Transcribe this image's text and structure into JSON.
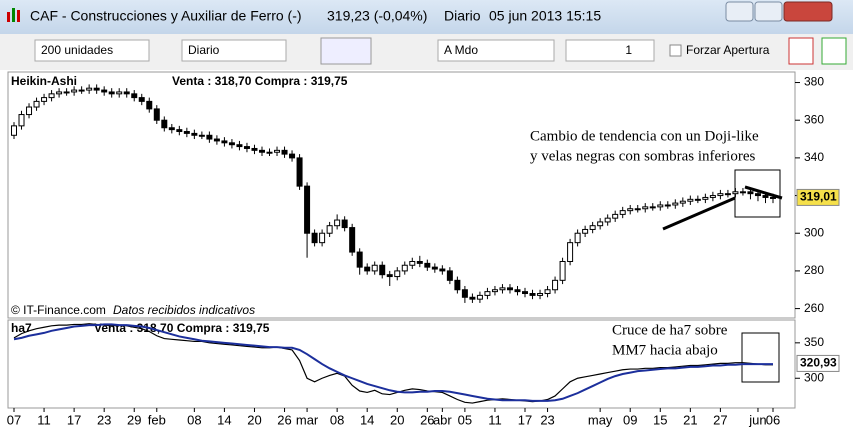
{
  "window": {
    "title": "CAF - Construcciones y Auxiliar de Ferro (-)",
    "quote": "319,23 (-0,04%)",
    "period": "Diario",
    "datetime": "05 jun 2013 15:15"
  },
  "toolbar": {
    "size": "200 unidades",
    "period": "Diario",
    "order": "A Mdo",
    "quantity": "1",
    "force_open": "Forzar Apertura"
  },
  "chart_data": [
    {
      "type": "candlestick",
      "title": "Heikin-Ashi",
      "subtitle": "Venta : 318,70 Compra : 319,75",
      "source": "© IT-Finance.com",
      "note": "Datos recibidos indicativos",
      "categories": [
        "07",
        null,
        null,
        null,
        "11",
        null,
        null,
        null,
        "17",
        null,
        null,
        null,
        "23",
        null,
        null,
        null,
        "29",
        null,
        null,
        "feb",
        null,
        null,
        null,
        null,
        "08",
        null,
        null,
        null,
        "14",
        null,
        null,
        null,
        "20",
        null,
        null,
        null,
        "26",
        null,
        null,
        "mar",
        null,
        null,
        null,
        "08",
        null,
        null,
        null,
        "14",
        null,
        null,
        null,
        "20",
        null,
        null,
        null,
        "26",
        null,
        "abr",
        null,
        null,
        "05",
        null,
        null,
        null,
        "11",
        null,
        null,
        null,
        "17",
        null,
        null,
        "23",
        null,
        null,
        null,
        null,
        null,
        null,
        "may",
        null,
        null,
        null,
        "09",
        null,
        null,
        null,
        "15",
        null,
        null,
        null,
        "21",
        null,
        null,
        null,
        "27",
        null,
        null,
        null,
        null,
        "jun",
        null,
        "06"
      ],
      "open": [
        352,
        357,
        363,
        367,
        370,
        372,
        374,
        375,
        375,
        376,
        376,
        377,
        376,
        375,
        374,
        375,
        374,
        372,
        370,
        366,
        360,
        356,
        355,
        354,
        353,
        352,
        352,
        350,
        349,
        348,
        347,
        346,
        345,
        344,
        343,
        343,
        344,
        342,
        340,
        325,
        300,
        295,
        300,
        304,
        307,
        303,
        290,
        282,
        280,
        283,
        278,
        277,
        280,
        283,
        285,
        284,
        282,
        281,
        280,
        275,
        270,
        266,
        265,
        267,
        269,
        270,
        271,
        270,
        269,
        268,
        267,
        268,
        270,
        275,
        285,
        295,
        300,
        302,
        304,
        306,
        308,
        310,
        312,
        313,
        313,
        314,
        314,
        315,
        315,
        316,
        317,
        318,
        318,
        319,
        320,
        321,
        321,
        322,
        322,
        321,
        320,
        319
      ],
      "high": [
        359,
        365,
        369,
        372,
        374,
        376,
        377,
        377,
        378,
        378,
        379,
        379,
        378,
        377,
        377,
        377,
        376,
        374,
        372,
        368,
        362,
        358,
        357,
        356,
        355,
        354,
        354,
        352,
        351,
        350,
        349,
        348,
        347,
        346,
        345,
        346,
        346,
        344,
        342,
        327,
        302,
        302,
        306,
        310,
        309,
        305,
        292,
        284,
        285,
        285,
        280,
        282,
        285,
        287,
        288,
        286,
        284,
        283,
        282,
        277,
        272,
        268,
        269,
        271,
        272,
        273,
        273,
        272,
        271,
        270,
        270,
        272,
        277,
        287,
        297,
        302,
        304,
        306,
        308,
        310,
        312,
        314,
        315,
        315,
        316,
        316,
        317,
        317,
        318,
        319,
        320,
        320,
        321,
        322,
        323,
        323,
        324,
        324,
        324,
        323,
        322,
        321
      ],
      "low": [
        350,
        355,
        361,
        365,
        368,
        370,
        372,
        373,
        373,
        374,
        374,
        374,
        373,
        372,
        372,
        372,
        370,
        368,
        364,
        358,
        354,
        353,
        352,
        351,
        350,
        350,
        348,
        347,
        346,
        345,
        344,
        343,
        342,
        341,
        341,
        341,
        340,
        338,
        323,
        287,
        293,
        293,
        298,
        302,
        301,
        288,
        278,
        278,
        278,
        276,
        272,
        275,
        278,
        281,
        282,
        280,
        279,
        278,
        273,
        268,
        263,
        263,
        263,
        265,
        267,
        268,
        268,
        267,
        266,
        265,
        265,
        266,
        268,
        273,
        283,
        293,
        298,
        300,
        302,
        304,
        306,
        308,
        310,
        311,
        311,
        312,
        312,
        313,
        313,
        314,
        315,
        316,
        316,
        317,
        318,
        319,
        319,
        320,
        318,
        317,
        316,
        316
      ],
      "close": [
        357,
        363,
        367,
        370,
        372,
        374,
        375,
        375,
        376,
        376,
        377,
        376,
        375,
        374,
        375,
        374,
        372,
        370,
        366,
        360,
        356,
        355,
        354,
        353,
        352,
        352,
        350,
        349,
        348,
        347,
        346,
        345,
        344,
        343,
        343,
        344,
        342,
        340,
        325,
        300,
        295,
        300,
        304,
        307,
        303,
        290,
        282,
        280,
        283,
        278,
        277,
        280,
        283,
        285,
        284,
        282,
        281,
        280,
        275,
        270,
        266,
        265,
        267,
        269,
        270,
        271,
        270,
        269,
        268,
        267,
        268,
        270,
        275,
        285,
        295,
        300,
        302,
        304,
        306,
        308,
        310,
        312,
        313,
        313,
        314,
        314,
        315,
        315,
        316,
        317,
        318,
        318,
        319,
        320,
        321,
        321,
        322,
        322,
        321,
        320,
        319,
        319
      ],
      "ylim": [
        255,
        384
      ],
      "yticks": [
        260,
        280,
        300,
        320,
        340,
        360,
        380
      ],
      "last_label": {
        "value": 319.01,
        "label": "319,01"
      },
      "annotations": [
        "Cambio de tendencia con un Doji-like",
        "y velas negras con sombras inferiores"
      ]
    },
    {
      "type": "line",
      "title": "ha7",
      "subtitle": "Venta : 318,70 Compra : 319,75",
      "series": [
        {
          "color": "#000000",
          "values": [
            357,
            363,
            367,
            370,
            372,
            374,
            375,
            375,
            376,
            376,
            377,
            376,
            375,
            374,
            375,
            374,
            372,
            370,
            366,
            360,
            356,
            355,
            354,
            353,
            352,
            352,
            350,
            349,
            348,
            347,
            346,
            345,
            344,
            343,
            343,
            344,
            342,
            340,
            325,
            300,
            295,
            300,
            304,
            307,
            303,
            290,
            282,
            280,
            283,
            278,
            277,
            280,
            283,
            285,
            284,
            282,
            281,
            280,
            275,
            270,
            266,
            265,
            267,
            269,
            270,
            271,
            270,
            269,
            268,
            267,
            268,
            270,
            275,
            285,
            295,
            300,
            302,
            304,
            306,
            308,
            310,
            312,
            313,
            313,
            314,
            314,
            315,
            315,
            316,
            317,
            318,
            318,
            319,
            320,
            321,
            321,
            322,
            322,
            321,
            320,
            319,
            319
          ]
        },
        {
          "color": "#1c2f9c",
          "values": [
            355,
            357,
            360,
            362,
            364,
            367,
            369,
            371,
            373,
            374,
            375,
            375,
            376,
            376,
            375,
            375,
            374,
            373,
            371,
            368,
            365,
            362,
            359,
            357,
            355,
            353,
            352,
            351,
            350,
            349,
            348,
            347,
            346,
            345,
            344,
            344,
            343,
            343,
            340,
            334,
            327,
            320,
            314,
            309,
            304,
            300,
            296,
            292,
            289,
            286,
            283,
            281,
            280,
            280,
            281,
            281,
            282,
            282,
            281,
            279,
            277,
            275,
            273,
            271,
            270,
            269,
            269,
            269,
            269,
            268,
            268,
            268,
            269,
            271,
            275,
            279,
            284,
            289,
            294,
            299,
            303,
            306,
            308,
            310,
            311,
            312,
            313,
            314,
            314,
            315,
            316,
            316,
            317,
            318,
            318,
            319,
            319,
            320,
            320,
            320,
            320,
            320
          ]
        }
      ],
      "ylim": [
        258,
        378
      ],
      "yticks": [
        300,
        350
      ],
      "last_label": {
        "value": 320.93,
        "label": "320,93"
      },
      "annotations": [
        "Cruce de ha7 sobre",
        "MM7 hacia abajo"
      ]
    }
  ]
}
